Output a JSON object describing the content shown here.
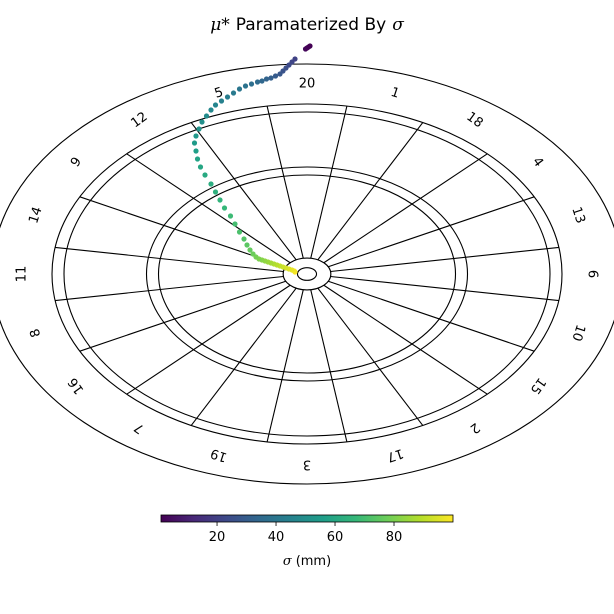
{
  "chart_data": {
    "type": "scatter",
    "title": {
      "symbol": "μ*",
      "text": "Paramaterized By",
      "var": "σ"
    },
    "board": {
      "segments": [
        "20",
        "1",
        "18",
        "4",
        "13",
        "6",
        "10",
        "15",
        "2",
        "17",
        "3",
        "19",
        "7",
        "16",
        "8",
        "11",
        "14",
        "9",
        "12",
        "5"
      ]
    },
    "series": [
      {
        "x": [
          -8,
          -8.5,
          -10,
          -12,
          -14,
          -16,
          -18,
          -20,
          -22,
          -24,
          -26,
          -28,
          -30,
          -32,
          -34,
          -36,
          -38,
          -40,
          -42,
          -45,
          -48,
          -51,
          -55,
          -58,
          -61,
          -64,
          -68,
          -71,
          -73,
          -74,
          -75,
          -74,
          -72,
          -70,
          -67,
          -64,
          -61,
          -57,
          -53,
          -49,
          -45,
          -41,
          -37,
          -33,
          -30,
          -27,
          -24,
          -21,
          -18,
          -16,
          -14,
          -12,
          -10,
          -8,
          -1,
          0,
          1,
          2
        ],
        "y": [
          2,
          3,
          4,
          5,
          6,
          7,
          8,
          9,
          10,
          11,
          12,
          13,
          14,
          15,
          17,
          20,
          24,
          29,
          35,
          42,
          50,
          58,
          66,
          74,
          82,
          90,
          99,
          107,
          115,
          123,
          131,
          138,
          145,
          152,
          158,
          164,
          169,
          173,
          177,
          181,
          185,
          188,
          190,
          192,
          193,
          195,
          196,
          198,
          200,
          203,
          206,
          209,
          212,
          215,
          225,
          226,
          227,
          228
        ],
        "sigma": [
          100,
          98.5,
          97,
          95.5,
          94,
          92.5,
          91,
          89.5,
          88,
          86.5,
          85,
          83.5,
          82,
          80.5,
          79,
          77.5,
          76,
          74.5,
          73,
          71.5,
          70,
          68.5,
          67,
          65.5,
          64,
          62.5,
          61,
          59.5,
          58,
          56.5,
          55,
          53.5,
          52,
          50.5,
          49,
          47.5,
          46,
          44.5,
          43,
          41.5,
          40,
          38.5,
          37,
          35.5,
          34,
          32.5,
          31,
          29.5,
          28,
          26.5,
          25,
          23.5,
          22,
          20.5,
          3,
          2.2,
          1.5,
          1
        ]
      }
    ],
    "colorbar": {
      "label_var": "σ",
      "label_unit": "(mm)",
      "range": [
        1,
        100
      ],
      "ticks": [
        20,
        40,
        60,
        80
      ],
      "colormap": "viridis"
    }
  },
  "colors": {
    "board_lines": "#000000",
    "background": "#ffffff",
    "viridis": [
      "#440154",
      "#482878",
      "#3e4989",
      "#31688e",
      "#26828e",
      "#1f9e89",
      "#35b779",
      "#6ece58",
      "#b5de2b",
      "#fde725"
    ]
  }
}
